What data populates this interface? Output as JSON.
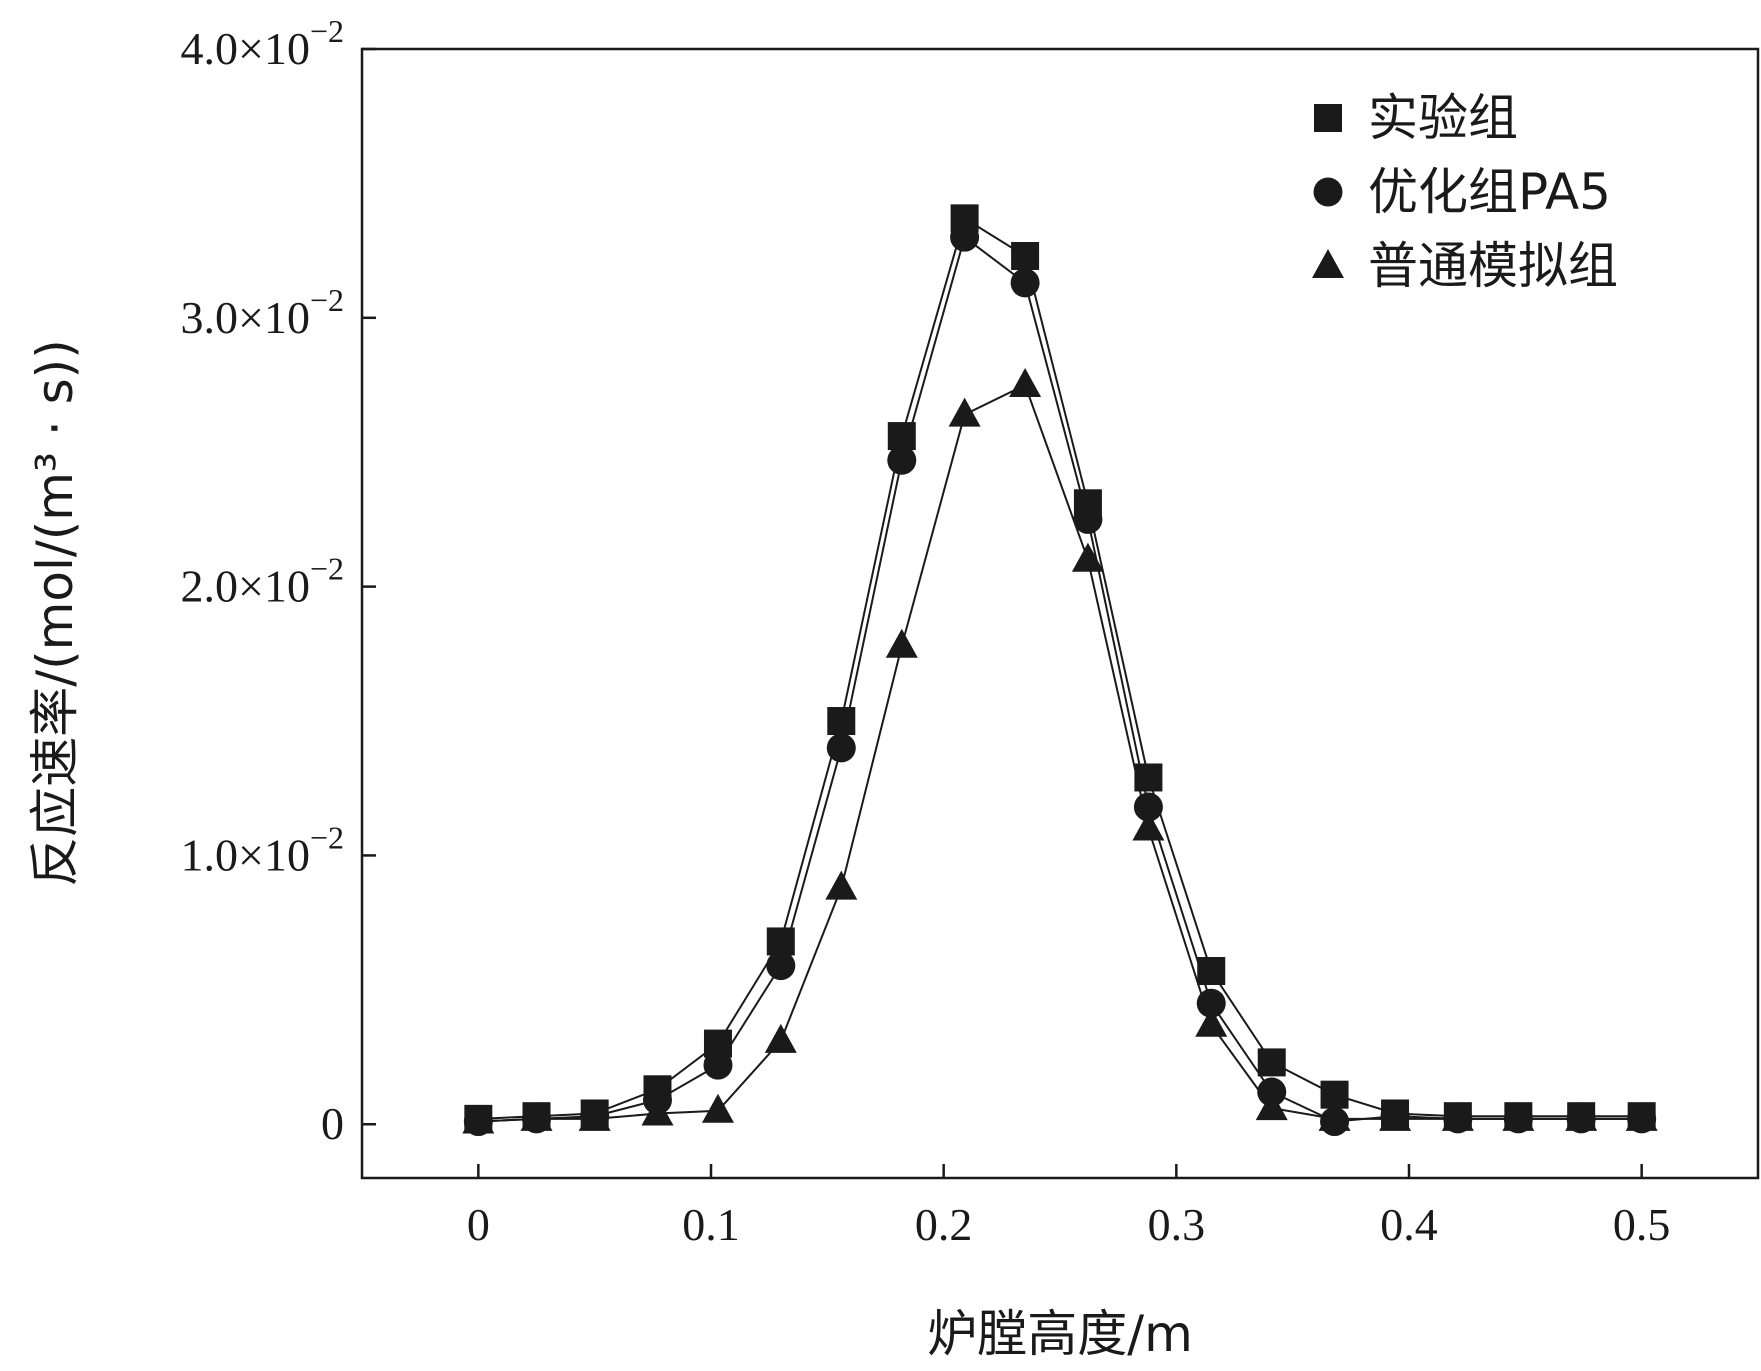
{
  "chart_data": {
    "type": "line",
    "title": "",
    "xlabel": "炉膛高度/m",
    "ylabel": "反应速率/(mol/(m³ · s))",
    "xlim": [
      -0.05,
      0.55
    ],
    "ylim": [
      -0.002,
      0.04
    ],
    "x_ticks": [
      0,
      0.1,
      0.2,
      0.3,
      0.4,
      0.5
    ],
    "x_tick_labels": [
      "0",
      "0.1",
      "0.2",
      "0.3",
      "0.4",
      "0.5"
    ],
    "y_ticks": [
      0,
      0.01,
      0.02,
      0.03,
      0.04
    ],
    "y_tick_labels": [
      {
        "mantissa": "0",
        "exponent": ""
      },
      {
        "mantissa": "1.0×10",
        "exponent": "−2"
      },
      {
        "mantissa": "2.0×10",
        "exponent": "−2"
      },
      {
        "mantissa": "3.0×10",
        "exponent": "−2"
      },
      {
        "mantissa": "4.0×10",
        "exponent": "−2"
      }
    ],
    "grid": false,
    "legend_position": "top-right",
    "x": [
      0,
      0.025,
      0.05,
      0.077,
      0.103,
      0.13,
      0.156,
      0.182,
      0.209,
      0.235,
      0.262,
      0.288,
      0.315,
      0.341,
      0.368,
      0.394,
      0.421,
      0.447,
      0.474,
      0.5
    ],
    "series": [
      {
        "name": "实验组",
        "marker": "square",
        "values": [
          0.0002,
          0.0003,
          0.0004,
          0.0013,
          0.003,
          0.0068,
          0.015,
          0.0256,
          0.0337,
          0.0323,
          0.0231,
          0.0129,
          0.0057,
          0.0023,
          0.0011,
          0.0004,
          0.0003,
          0.0003,
          0.0003,
          0.0003
        ]
      },
      {
        "name": "优化组PA5",
        "marker": "circle",
        "values": [
          0.0001,
          0.0002,
          0.0003,
          0.0009,
          0.0022,
          0.0059,
          0.014,
          0.0247,
          0.033,
          0.0313,
          0.0225,
          0.0118,
          0.0045,
          0.0012,
          0.0001,
          0.0003,
          0.0002,
          0.0002,
          0.0002,
          0.0002
        ]
      },
      {
        "name": "普通模拟组",
        "marker": "triangle",
        "values": [
          0.0001,
          0.0002,
          0.0002,
          0.0004,
          0.0005,
          0.0031,
          0.0088,
          0.0178,
          0.0264,
          0.0275,
          0.021,
          0.011,
          0.0037,
          0.0006,
          0.0002,
          0.0002,
          0.0002,
          0.0002,
          0.0002,
          0.0002
        ]
      }
    ]
  }
}
